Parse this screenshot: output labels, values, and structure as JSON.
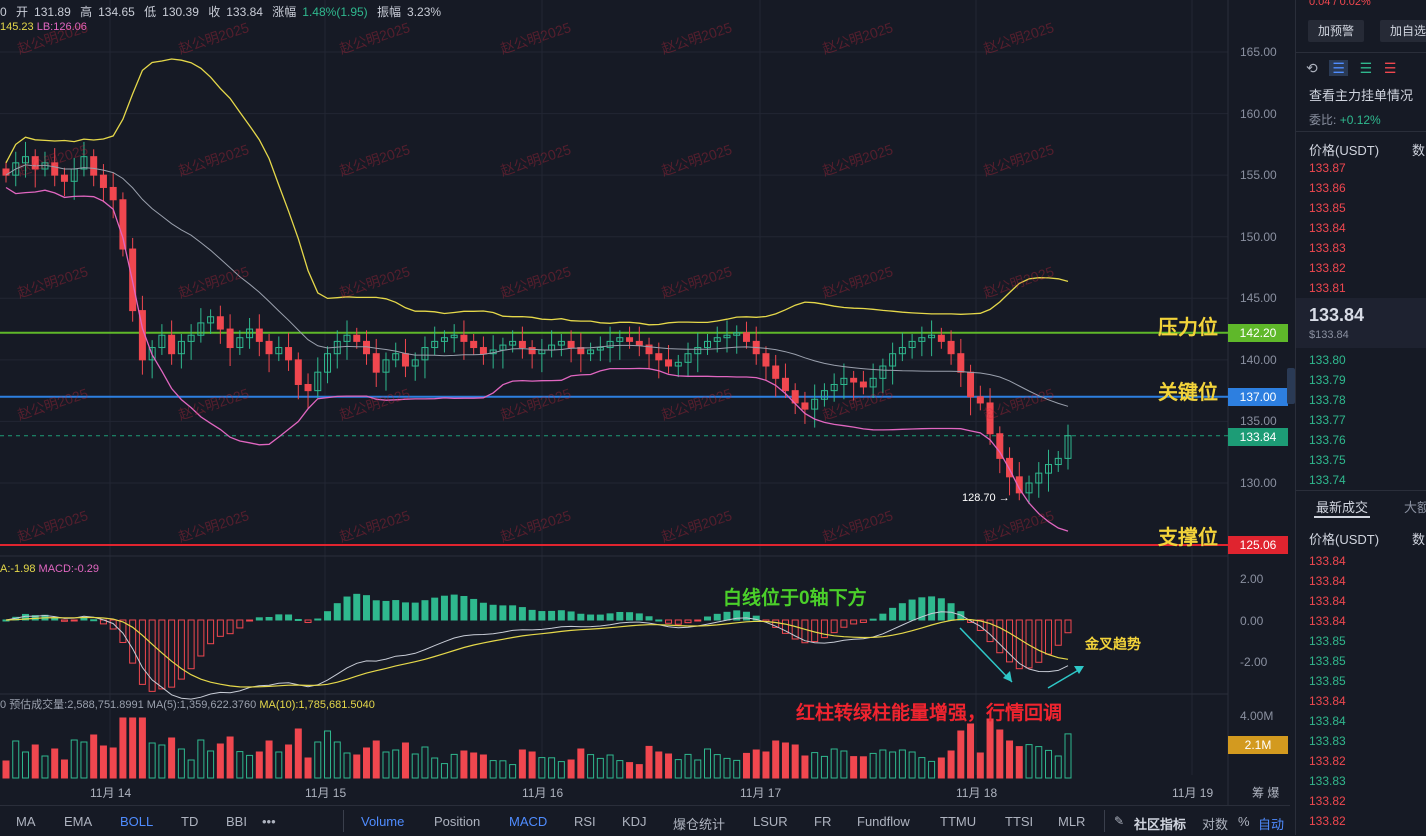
{
  "header": {
    "open_label": "开",
    "open": "131.89",
    "high_label": "高",
    "high": "134.65",
    "low_label": "低",
    "low": "130.39",
    "close_label": "收",
    "close": "133.84",
    "change_label": "涨幅",
    "change": "1.48%(1.95)",
    "amplitude_label": "振幅",
    "amplitude": "3.23%"
  },
  "boll_readout": {
    "ub": "145.23",
    "lb": "LB:126.06"
  },
  "macd_readout": {
    "dea": "A:-1.98",
    "macd": "MACD:-0.29"
  },
  "vol_readout": {
    "est": "预估成交量:2,588,751.8991",
    "ma5": "MA(5):1,359,622.3760",
    "ma10": "MA(10):1,785,681.5040"
  },
  "annotations": {
    "resistance": "压力位",
    "key": "关键位",
    "support": "支撑位",
    "white_line": "白线位于0轴下方",
    "golden_cross": "金叉趋势",
    "volume_note": "红柱转绿柱能量增强，行情回调",
    "low_marker": "128.70 →"
  },
  "levels": {
    "resistance": "142.20",
    "key": "137.00",
    "current": "133.84",
    "support": "125.06",
    "volume_tag": "2.1M"
  },
  "watermark": "赵公明2025",
  "bottom_tools": [
    "MA",
    "EMA",
    "BOLL",
    "TD",
    "BBI",
    "•••",
    "Volume",
    "Position",
    "MACD",
    "RSI",
    "KDJ",
    "爆仓统计",
    "LSUR",
    "FR",
    "Fundflow",
    "TTMU",
    "TTSI",
    "MLR",
    "社区指标",
    "对数",
    "%",
    "自动"
  ],
  "right_panel": {
    "top_partial": "0.04 / 0.02%",
    "alert_button": "加预警",
    "watch_button": "加自选",
    "orderbook_title": "查看主力挂单情况",
    "ratio_label": "委比:",
    "ratio_value": "+0.12%",
    "price_header": "价格(USDT)",
    "qty_header": "数",
    "asks": [
      "133.87",
      "133.86",
      "133.85",
      "133.84",
      "133.83",
      "133.82",
      "133.81"
    ],
    "last_price": "133.84",
    "last_price_sub": "$133.84",
    "bids": [
      "133.80",
      "133.79",
      "133.78",
      "133.77",
      "133.76",
      "133.75",
      "133.74"
    ],
    "trades_tab": "最新成交",
    "big_tab": "大额",
    "trades_price_header": "价格(USDT)",
    "trades_qty_header": "数",
    "trades": [
      {
        "p": "133.84",
        "c": "red"
      },
      {
        "p": "133.84",
        "c": "red"
      },
      {
        "p": "133.84",
        "c": "red"
      },
      {
        "p": "133.84",
        "c": "red"
      },
      {
        "p": "133.85",
        "c": "green"
      },
      {
        "p": "133.85",
        "c": "green"
      },
      {
        "p": "133.85",
        "c": "green"
      },
      {
        "p": "133.84",
        "c": "red"
      },
      {
        "p": "133.84",
        "c": "green"
      },
      {
        "p": "133.83",
        "c": "green"
      },
      {
        "p": "133.82",
        "c": "red"
      },
      {
        "p": "133.83",
        "c": "green"
      },
      {
        "p": "133.82",
        "c": "red"
      },
      {
        "p": "133.82",
        "c": "red"
      },
      {
        "p": "133.83",
        "c": "green"
      },
      {
        "p": "133.82",
        "c": "red"
      }
    ]
  },
  "chart_data": {
    "type": "candlestick",
    "y_ticks": [
      "165.00",
      "160.00",
      "155.00",
      "150.00",
      "145.00",
      "140.00",
      "135.00",
      "130.00"
    ],
    "y_range": [
      124,
      168
    ],
    "x_ticks": [
      "11月 14",
      "11月 15",
      "11月 16",
      "11月 17",
      "11月 18",
      "11月 19"
    ],
    "macd_ticks": [
      "2.00",
      "0.00",
      "-2.00"
    ],
    "volume_ticks": [
      "4.00M"
    ],
    "horizontal_levels": [
      142.2,
      137.0,
      133.84,
      125.06
    ],
    "close_series": [
      155,
      156,
      156.5,
      155.5,
      156,
      155,
      154.5,
      155.5,
      156.5,
      155,
      154,
      153,
      149,
      144,
      140,
      141,
      142,
      140.5,
      141.5,
      142,
      143,
      143.5,
      142.5,
      141,
      141.8,
      142.5,
      141.5,
      140.5,
      141,
      140,
      138,
      137.5,
      139,
      140.5,
      141.5,
      142,
      141.5,
      140.5,
      139,
      140,
      140.5,
      139.5,
      140,
      141,
      141.5,
      141.8,
      142,
      141.5,
      141,
      140.5,
      140.8,
      141.2,
      141.5,
      141,
      140.5,
      140.8,
      141.2,
      141.5,
      141,
      140.5,
      140.8,
      141,
      141.5,
      141.8,
      141.5,
      141.2,
      140.5,
      140,
      139.5,
      139.8,
      140.5,
      141,
      141.5,
      141.8,
      142,
      142.2,
      141.5,
      140.5,
      139.5,
      138.5,
      137.5,
      136.5,
      136,
      136.8,
      137.5,
      138,
      138.5,
      138.2,
      137.8,
      138.5,
      139.5,
      140.5,
      141,
      141.5,
      141.8,
      142,
      141.5,
      140.5,
      139,
      137,
      136.5,
      134,
      132,
      130.5,
      129.2,
      130,
      130.8,
      131.5,
      132,
      133.84
    ],
    "macd_hist_note": "green above zero mid-chart, red negative bars near end shrinking"
  }
}
